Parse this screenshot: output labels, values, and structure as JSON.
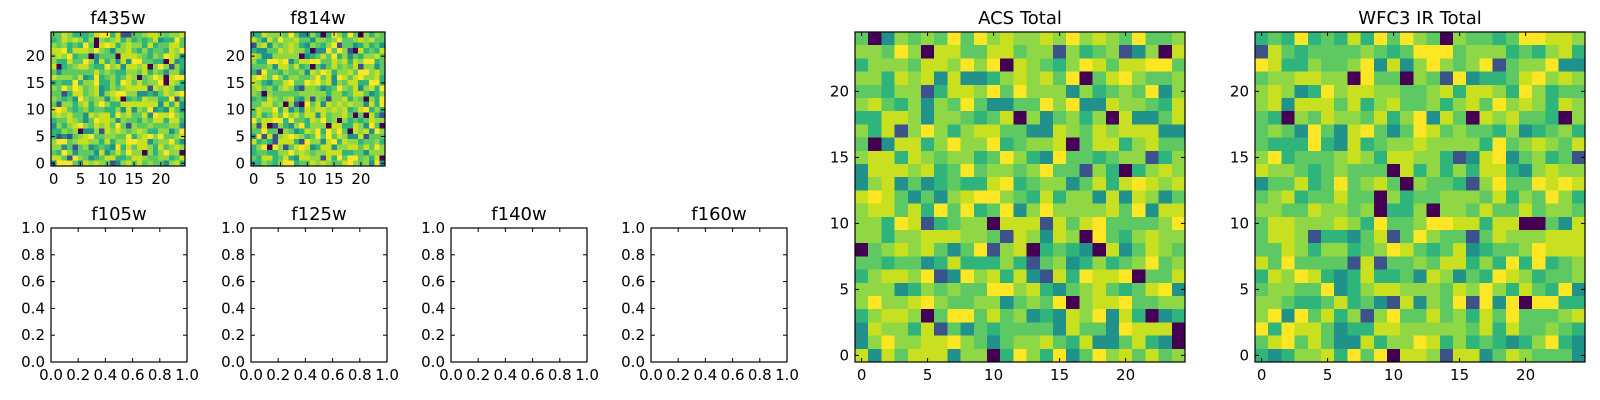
{
  "chart_data": [
    {
      "type": "heatmap",
      "title": "f435w",
      "xticks": [
        0,
        5,
        10,
        15,
        20
      ],
      "yticks": [
        0,
        5,
        10,
        15,
        20
      ],
      "xlim": [
        -0.5,
        24.5
      ],
      "ylim": [
        -0.5,
        24.5
      ],
      "grid_size": [
        25,
        25
      ],
      "colormap": "viridis",
      "pattern_seed": 11
    },
    {
      "type": "heatmap",
      "title": "f814w",
      "xticks": [
        0,
        5,
        10,
        15,
        20
      ],
      "yticks": [
        0,
        5,
        10,
        15,
        20
      ],
      "xlim": [
        -0.5,
        24.5
      ],
      "ylim": [
        -0.5,
        24.5
      ],
      "grid_size": [
        25,
        25
      ],
      "colormap": "viridis",
      "pattern_seed": 23
    },
    {
      "type": "empty",
      "title": "f105w",
      "xticks": [
        "0.0",
        "0.2",
        "0.4",
        "0.6",
        "0.8",
        "1.0"
      ],
      "yticks": [
        "0.0",
        "0.2",
        "0.4",
        "0.6",
        "0.8",
        "1.0"
      ],
      "xlim": [
        0,
        1
      ],
      "ylim": [
        0,
        1
      ]
    },
    {
      "type": "empty",
      "title": "f125w",
      "xticks": [
        "0.0",
        "0.2",
        "0.4",
        "0.6",
        "0.8",
        "1.0"
      ],
      "yticks": [
        "0.0",
        "0.2",
        "0.4",
        "0.6",
        "0.8",
        "1.0"
      ],
      "xlim": [
        0,
        1
      ],
      "ylim": [
        0,
        1
      ]
    },
    {
      "type": "empty",
      "title": "f140w",
      "xticks": [
        "0.0",
        "0.2",
        "0.4",
        "0.6",
        "0.8",
        "1.0"
      ],
      "yticks": [
        "0.0",
        "0.2",
        "0.4",
        "0.6",
        "0.8",
        "1.0"
      ],
      "xlim": [
        0,
        1
      ],
      "ylim": [
        0,
        1
      ]
    },
    {
      "type": "empty",
      "title": "f160w",
      "xticks": [
        "0.0",
        "0.2",
        "0.4",
        "0.6",
        "0.8",
        "1.0"
      ],
      "yticks": [
        "0.0",
        "0.2",
        "0.4",
        "0.6",
        "0.8",
        "1.0"
      ],
      "xlim": [
        0,
        1
      ],
      "ylim": [
        0,
        1
      ]
    },
    {
      "type": "heatmap",
      "title": "ACS Total",
      "xticks": [
        0,
        5,
        10,
        15,
        20
      ],
      "yticks": [
        0,
        5,
        10,
        15,
        20
      ],
      "xlim": [
        -0.5,
        24.5
      ],
      "ylim": [
        -0.5,
        24.5
      ],
      "grid_size": [
        25,
        25
      ],
      "colormap": "viridis",
      "pattern_seed": 37
    },
    {
      "type": "heatmap",
      "title": "WFC3 IR Total",
      "xticks": [
        0,
        5,
        10,
        15,
        20
      ],
      "yticks": [
        0,
        5,
        10,
        15,
        20
      ],
      "xlim": [
        -0.5,
        24.5
      ],
      "ylim": [
        -0.5,
        24.5
      ],
      "grid_size": [
        25,
        25
      ],
      "colormap": "viridis",
      "pattern_seed": 53
    }
  ]
}
